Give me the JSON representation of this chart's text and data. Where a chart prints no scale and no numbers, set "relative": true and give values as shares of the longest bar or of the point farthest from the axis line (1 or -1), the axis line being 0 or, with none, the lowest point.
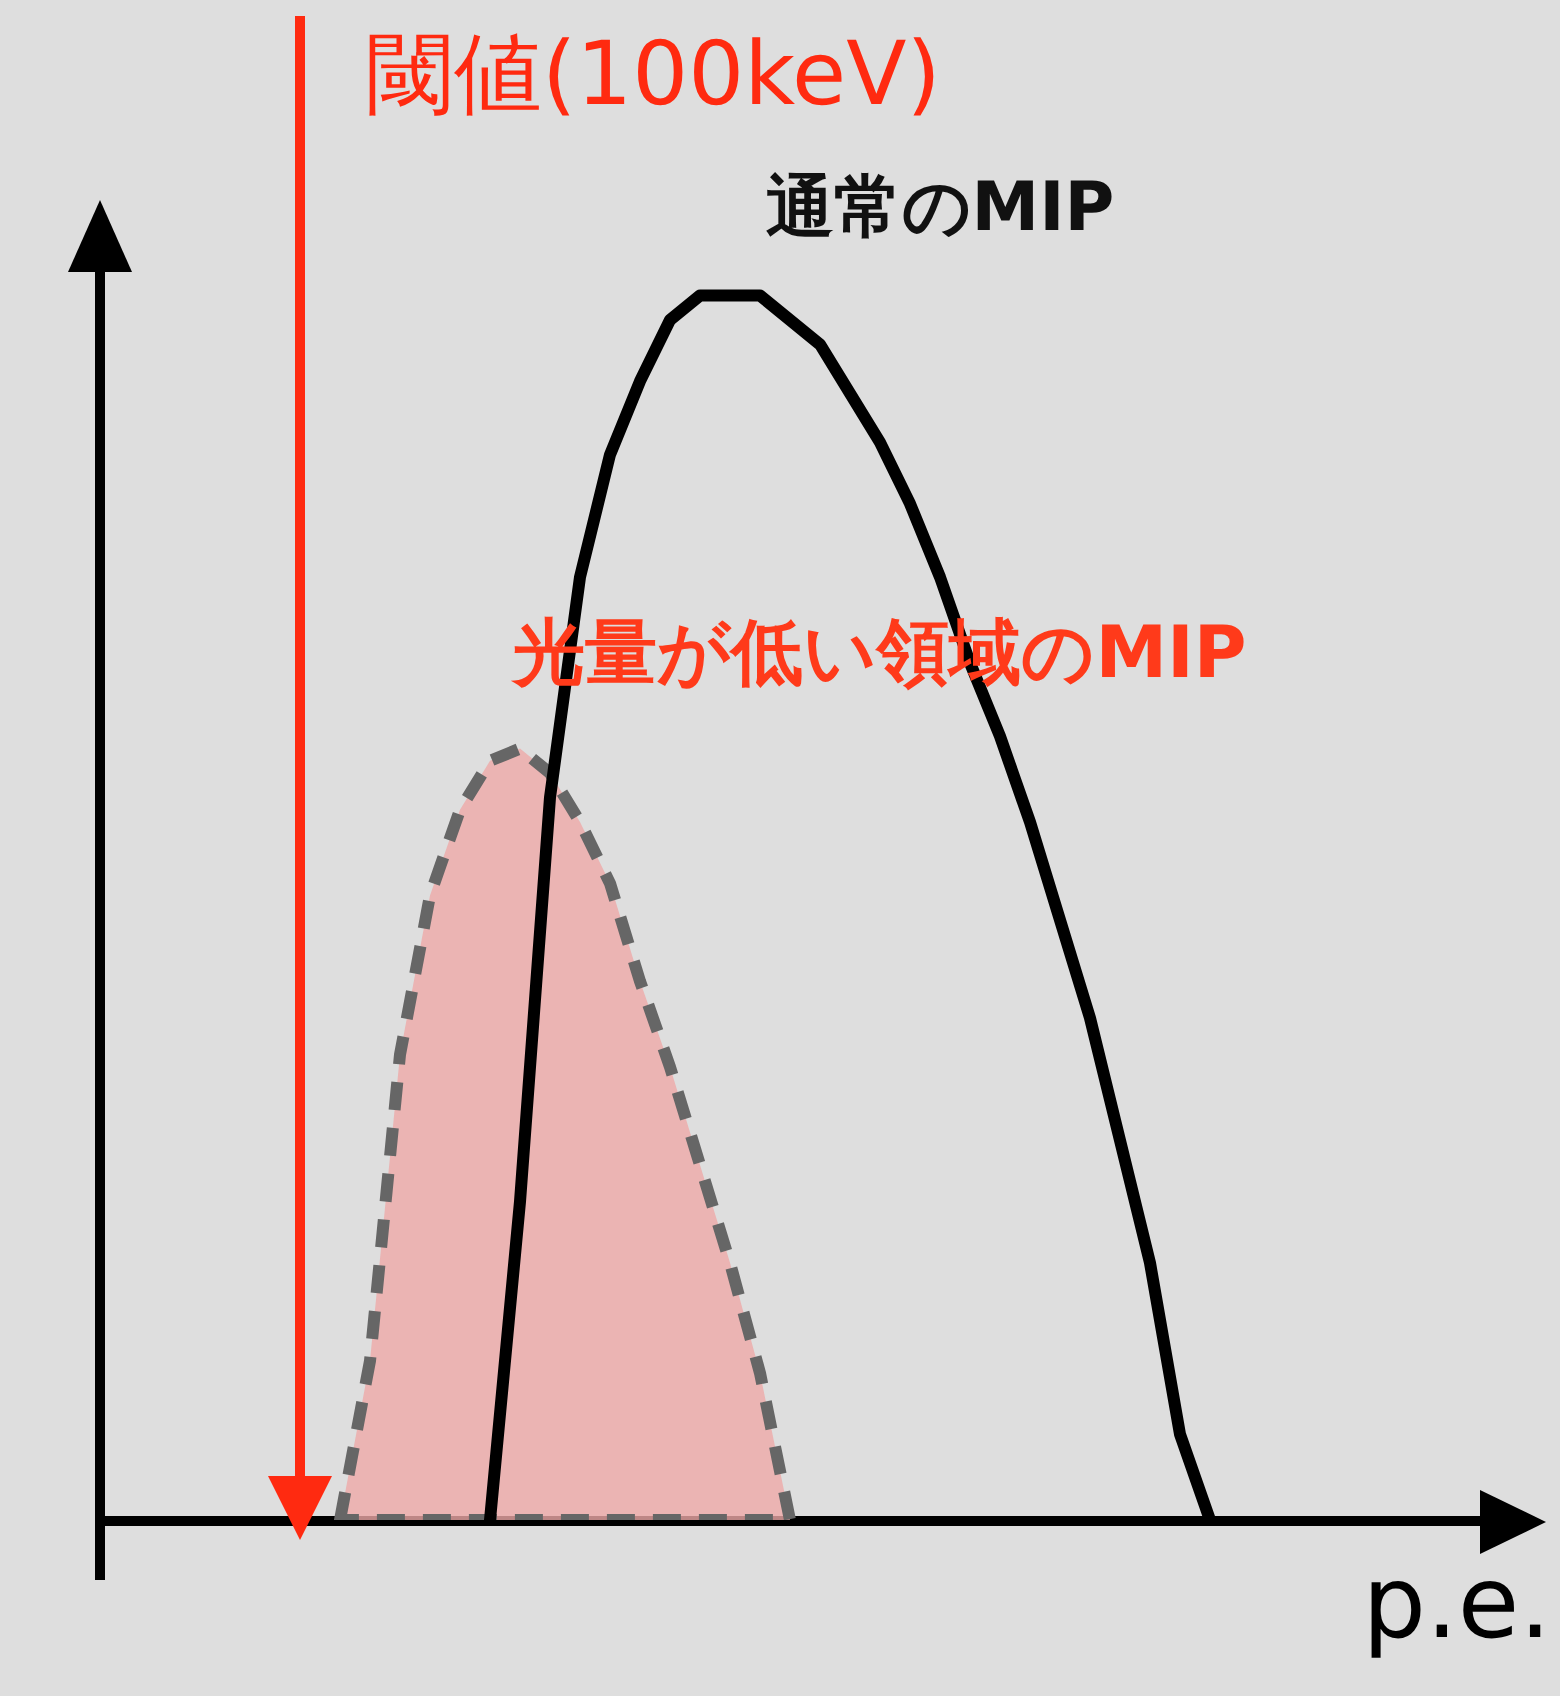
{
  "chart_data": {
    "type": "line",
    "relative": true,
    "xlabel": "p.e.",
    "tick_labels": false,
    "annotations": [
      "閾値(100keV)"
    ],
    "categories": [
      null,
      null,
      null,
      null,
      null,
      null,
      null,
      null,
      null,
      null,
      null,
      null,
      null,
      null,
      null,
      null,
      null,
      null,
      null,
      null,
      null,
      null,
      null,
      null,
      null,
      null,
      null,
      null,
      null,
      null,
      null,
      null,
      null,
      null,
      null,
      null,
      null,
      null,
      null,
      null,
      null,
      null,
      null,
      null,
      null,
      null,
      null,
      null
    ],
    "series": [
      {
        "name": "通常のMIP",
        "line_style": "solid",
        "color": "#000000",
        "values": [
          null,
          null,
          null,
          null,
          null,
          null,
          null,
          null,
          null,
          null,
          null,
          null,
          null,
          0,
          0.26,
          0.59,
          0.77,
          0.87,
          0.93,
          0.98,
          1.0,
          1.0,
          1.0,
          0.98,
          0.96,
          0.92,
          0.88,
          0.83,
          0.77,
          0.7,
          0.64,
          0.57,
          0.49,
          0.41,
          0.31,
          0.21,
          0.07,
          0,
          null,
          null,
          null,
          null,
          null,
          null,
          null,
          null,
          null,
          null
        ]
      },
      {
        "name": "光量が低い領域のMIP",
        "type": "area",
        "line_style": "dashed",
        "color": "#eda9a7",
        "values": [
          null,
          null,
          null,
          null,
          null,
          null,
          null,
          null,
          0,
          0.13,
          0.38,
          0.51,
          0.58,
          0.62,
          0.63,
          0.61,
          0.57,
          0.52,
          0.44,
          0.37,
          0.29,
          0.21,
          0.12,
          0,
          null,
          null,
          null,
          null,
          null,
          null,
          null,
          null,
          null,
          null,
          null,
          null,
          null,
          null,
          null,
          null,
          null,
          null,
          null,
          null,
          null,
          null,
          null,
          null
        ]
      }
    ]
  }
}
